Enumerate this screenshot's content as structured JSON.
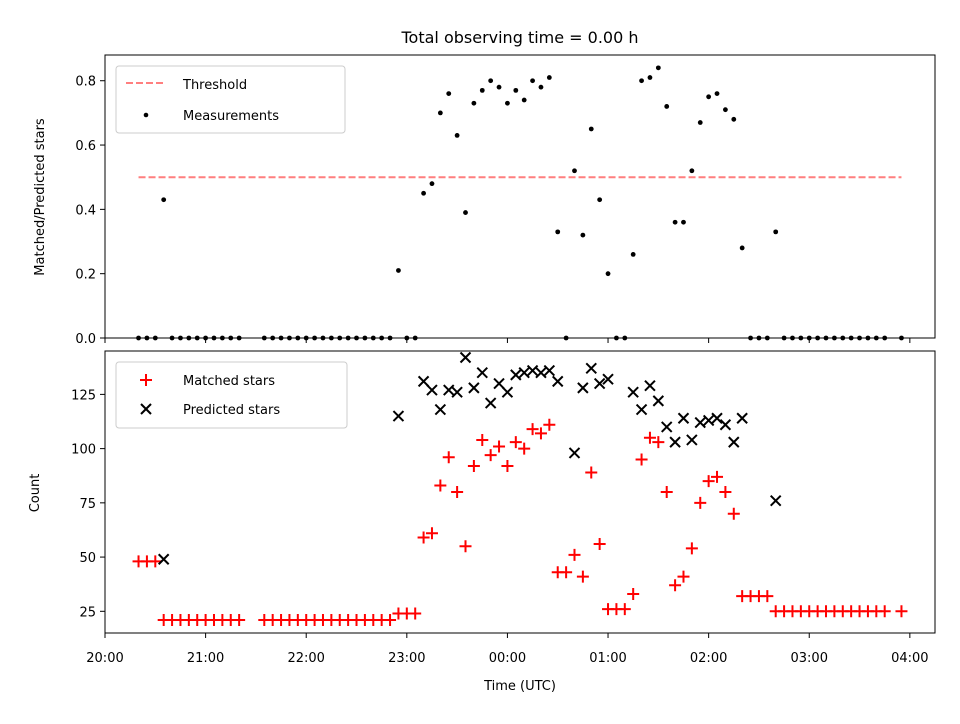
{
  "figure_title": "Total observing time = 0.00 h",
  "colors": {
    "threshold": "#ff7f7f",
    "measurements": "#000000",
    "matched": "#ff0000",
    "predicted": "#000000"
  },
  "chart_data": [
    {
      "type": "scatter",
      "title": "Total observing time = 0.00 h",
      "xlabel": "",
      "ylabel": "Matched/Predicted stars",
      "xlim": [
        20.0,
        4.25
      ],
      "x_is_time_utc_hours_wrapping_midnight": true,
      "ylim": [
        0,
        0.88
      ],
      "yticks": [
        "0.0",
        "0.2",
        "0.4",
        "0.6",
        "0.8"
      ],
      "ytick_values": [
        0,
        0.2,
        0.4,
        0.6,
        0.8
      ],
      "legend_position": "top-left",
      "legend": [
        {
          "label": "Threshold",
          "style": "dashed-line"
        },
        {
          "label": "Measurements",
          "style": "dot"
        }
      ],
      "threshold": {
        "name": "Threshold",
        "value": 0.5,
        "x_range": [
          "20:20",
          "03:55"
        ]
      },
      "series": [
        {
          "name": "Measurements",
          "points": [
            [
              "20:20",
              0
            ],
            [
              "20:25",
              0
            ],
            [
              "20:30",
              0
            ],
            [
              "20:35",
              0.43
            ],
            [
              "20:40",
              0
            ],
            [
              "20:45",
              0
            ],
            [
              "20:50",
              0
            ],
            [
              "20:55",
              0
            ],
            [
              "21:00",
              0
            ],
            [
              "21:05",
              0
            ],
            [
              "21:10",
              0
            ],
            [
              "21:15",
              0
            ],
            [
              "21:20",
              0
            ],
            [
              "21:35",
              0
            ],
            [
              "21:40",
              0
            ],
            [
              "21:45",
              0
            ],
            [
              "21:50",
              0
            ],
            [
              "21:55",
              0
            ],
            [
              "22:00",
              0
            ],
            [
              "22:05",
              0
            ],
            [
              "22:10",
              0
            ],
            [
              "22:15",
              0
            ],
            [
              "22:20",
              0
            ],
            [
              "22:25",
              0
            ],
            [
              "22:30",
              0
            ],
            [
              "22:35",
              0
            ],
            [
              "22:40",
              0
            ],
            [
              "22:45",
              0
            ],
            [
              "22:50",
              0
            ],
            [
              "22:55",
              0.21
            ],
            [
              "23:00",
              0
            ],
            [
              "23:05",
              0
            ],
            [
              "23:10",
              0.45
            ],
            [
              "23:15",
              0.48
            ],
            [
              "23:20",
              0.7
            ],
            [
              "23:25",
              0.76
            ],
            [
              "23:30",
              0.63
            ],
            [
              "23:35",
              0.39
            ],
            [
              "23:40",
              0.73
            ],
            [
              "23:45",
              0.77
            ],
            [
              "23:50",
              0.8
            ],
            [
              "23:55",
              0.78
            ],
            [
              "00:00",
              0.73
            ],
            [
              "00:05",
              0.77
            ],
            [
              "00:10",
              0.74
            ],
            [
              "00:15",
              0.8
            ],
            [
              "00:20",
              0.78
            ],
            [
              "00:25",
              0.81
            ],
            [
              "00:30",
              0.33
            ],
            [
              "00:35",
              0
            ],
            [
              "00:40",
              0.52
            ],
            [
              "00:45",
              0.32
            ],
            [
              "00:50",
              0.65
            ],
            [
              "00:55",
              0.43
            ],
            [
              "01:00",
              0.2
            ],
            [
              "01:05",
              0
            ],
            [
              "01:10",
              0
            ],
            [
              "01:15",
              0.26
            ],
            [
              "01:20",
              0.8
            ],
            [
              "01:25",
              0.81
            ],
            [
              "01:30",
              0.84
            ],
            [
              "01:35",
              0.72
            ],
            [
              "01:40",
              0.36
            ],
            [
              "01:45",
              0.36
            ],
            [
              "01:50",
              0.52
            ],
            [
              "01:55",
              0.67
            ],
            [
              "02:00",
              0.75
            ],
            [
              "02:05",
              0.76
            ],
            [
              "02:10",
              0.71
            ],
            [
              "02:15",
              0.68
            ],
            [
              "02:20",
              0.28
            ],
            [
              "02:25",
              0
            ],
            [
              "02:30",
              0
            ],
            [
              "02:35",
              0
            ],
            [
              "02:40",
              0.33
            ],
            [
              "02:45",
              0
            ],
            [
              "02:50",
              0
            ],
            [
              "02:55",
              0
            ],
            [
              "03:00",
              0
            ],
            [
              "03:05",
              0
            ],
            [
              "03:10",
              0
            ],
            [
              "03:15",
              0
            ],
            [
              "03:20",
              0
            ],
            [
              "03:25",
              0
            ],
            [
              "03:30",
              0
            ],
            [
              "03:35",
              0
            ],
            [
              "03:40",
              0
            ],
            [
              "03:45",
              0
            ],
            [
              "03:55",
              0
            ]
          ]
        }
      ]
    },
    {
      "type": "scatter",
      "title": "",
      "xlabel": "Time (UTC)",
      "ylabel": "Count",
      "xlim": [
        20.0,
        4.25
      ],
      "x_is_time_utc_hours_wrapping_midnight": true,
      "ylim": [
        15,
        145
      ],
      "xticks": [
        "20:00",
        "21:00",
        "22:00",
        "23:00",
        "00:00",
        "01:00",
        "02:00",
        "03:00",
        "04:00"
      ],
      "yticks": [
        "25",
        "50",
        "75",
        "100",
        "125"
      ],
      "ytick_values": [
        25,
        50,
        75,
        100,
        125
      ],
      "legend_position": "top-left",
      "legend": [
        {
          "label": "Matched stars",
          "style": "plus"
        },
        {
          "label": "Predicted stars",
          "style": "cross"
        }
      ],
      "series": [
        {
          "name": "Matched stars",
          "points": [
            [
              "20:20",
              48
            ],
            [
              "20:25",
              48
            ],
            [
              "20:30",
              48
            ],
            [
              "20:35",
              21
            ],
            [
              "20:40",
              21
            ],
            [
              "20:45",
              21
            ],
            [
              "20:50",
              21
            ],
            [
              "20:55",
              21
            ],
            [
              "21:00",
              21
            ],
            [
              "21:05",
              21
            ],
            [
              "21:10",
              21
            ],
            [
              "21:15",
              21
            ],
            [
              "21:20",
              21
            ],
            [
              "21:35",
              21
            ],
            [
              "21:40",
              21
            ],
            [
              "21:45",
              21
            ],
            [
              "21:50",
              21
            ],
            [
              "21:55",
              21
            ],
            [
              "22:00",
              21
            ],
            [
              "22:05",
              21
            ],
            [
              "22:10",
              21
            ],
            [
              "22:15",
              21
            ],
            [
              "22:20",
              21
            ],
            [
              "22:25",
              21
            ],
            [
              "22:30",
              21
            ],
            [
              "22:35",
              21
            ],
            [
              "22:40",
              21
            ],
            [
              "22:45",
              21
            ],
            [
              "22:50",
              21
            ],
            [
              "22:55",
              24
            ],
            [
              "23:00",
              24
            ],
            [
              "23:05",
              24
            ],
            [
              "23:10",
              59
            ],
            [
              "23:15",
              61
            ],
            [
              "23:20",
              83
            ],
            [
              "23:25",
              96
            ],
            [
              "23:30",
              80
            ],
            [
              "23:35",
              55
            ],
            [
              "23:40",
              92
            ],
            [
              "23:45",
              104
            ],
            [
              "23:50",
              97
            ],
            [
              "23:55",
              101
            ],
            [
              "00:00",
              92
            ],
            [
              "00:05",
              103
            ],
            [
              "00:10",
              100
            ],
            [
              "00:15",
              109
            ],
            [
              "00:20",
              107
            ],
            [
              "00:25",
              111
            ],
            [
              "00:30",
              43
            ],
            [
              "00:35",
              43
            ],
            [
              "00:40",
              51
            ],
            [
              "00:45",
              41
            ],
            [
              "00:50",
              89
            ],
            [
              "00:55",
              56
            ],
            [
              "01:00",
              26
            ],
            [
              "01:05",
              26
            ],
            [
              "01:10",
              26
            ],
            [
              "01:15",
              33
            ],
            [
              "01:20",
              95
            ],
            [
              "01:25",
              105
            ],
            [
              "01:30",
              103
            ],
            [
              "01:35",
              80
            ],
            [
              "01:40",
              37
            ],
            [
              "01:45",
              41
            ],
            [
              "01:50",
              54
            ],
            [
              "01:55",
              75
            ],
            [
              "02:00",
              85
            ],
            [
              "02:05",
              87
            ],
            [
              "02:10",
              80
            ],
            [
              "02:15",
              70
            ],
            [
              "02:20",
              32
            ],
            [
              "02:25",
              32
            ],
            [
              "02:30",
              32
            ],
            [
              "02:35",
              32
            ],
            [
              "02:40",
              25
            ],
            [
              "02:45",
              25
            ],
            [
              "02:50",
              25
            ],
            [
              "02:55",
              25
            ],
            [
              "03:00",
              25
            ],
            [
              "03:05",
              25
            ],
            [
              "03:10",
              25
            ],
            [
              "03:15",
              25
            ],
            [
              "03:20",
              25
            ],
            [
              "03:25",
              25
            ],
            [
              "03:30",
              25
            ],
            [
              "03:35",
              25
            ],
            [
              "03:40",
              25
            ],
            [
              "03:45",
              25
            ],
            [
              "03:55",
              25
            ]
          ]
        },
        {
          "name": "Predicted stars",
          "points": [
            [
              "20:35",
              49
            ],
            [
              "22:55",
              115
            ],
            [
              "23:10",
              131
            ],
            [
              "23:15",
              127
            ],
            [
              "23:20",
              118
            ],
            [
              "23:25",
              127
            ],
            [
              "23:30",
              126
            ],
            [
              "23:35",
              142
            ],
            [
              "23:40",
              128
            ],
            [
              "23:45",
              135
            ],
            [
              "23:50",
              121
            ],
            [
              "23:55",
              130
            ],
            [
              "00:00",
              126
            ],
            [
              "00:05",
              134
            ],
            [
              "00:10",
              135
            ],
            [
              "00:15",
              136
            ],
            [
              "00:20",
              135
            ],
            [
              "00:25",
              136
            ],
            [
              "00:30",
              131
            ],
            [
              "00:40",
              98
            ],
            [
              "00:45",
              128
            ],
            [
              "00:50",
              137
            ],
            [
              "00:55",
              130
            ],
            [
              "01:00",
              132
            ],
            [
              "01:15",
              126
            ],
            [
              "01:20",
              118
            ],
            [
              "01:25",
              129
            ],
            [
              "01:30",
              122
            ],
            [
              "01:35",
              110
            ],
            [
              "01:40",
              103
            ],
            [
              "01:45",
              114
            ],
            [
              "01:50",
              104
            ],
            [
              "01:55",
              112
            ],
            [
              "02:00",
              113
            ],
            [
              "02:05",
              114
            ],
            [
              "02:10",
              111
            ],
            [
              "02:15",
              103
            ],
            [
              "02:20",
              114
            ],
            [
              "02:40",
              76
            ]
          ]
        }
      ]
    }
  ]
}
